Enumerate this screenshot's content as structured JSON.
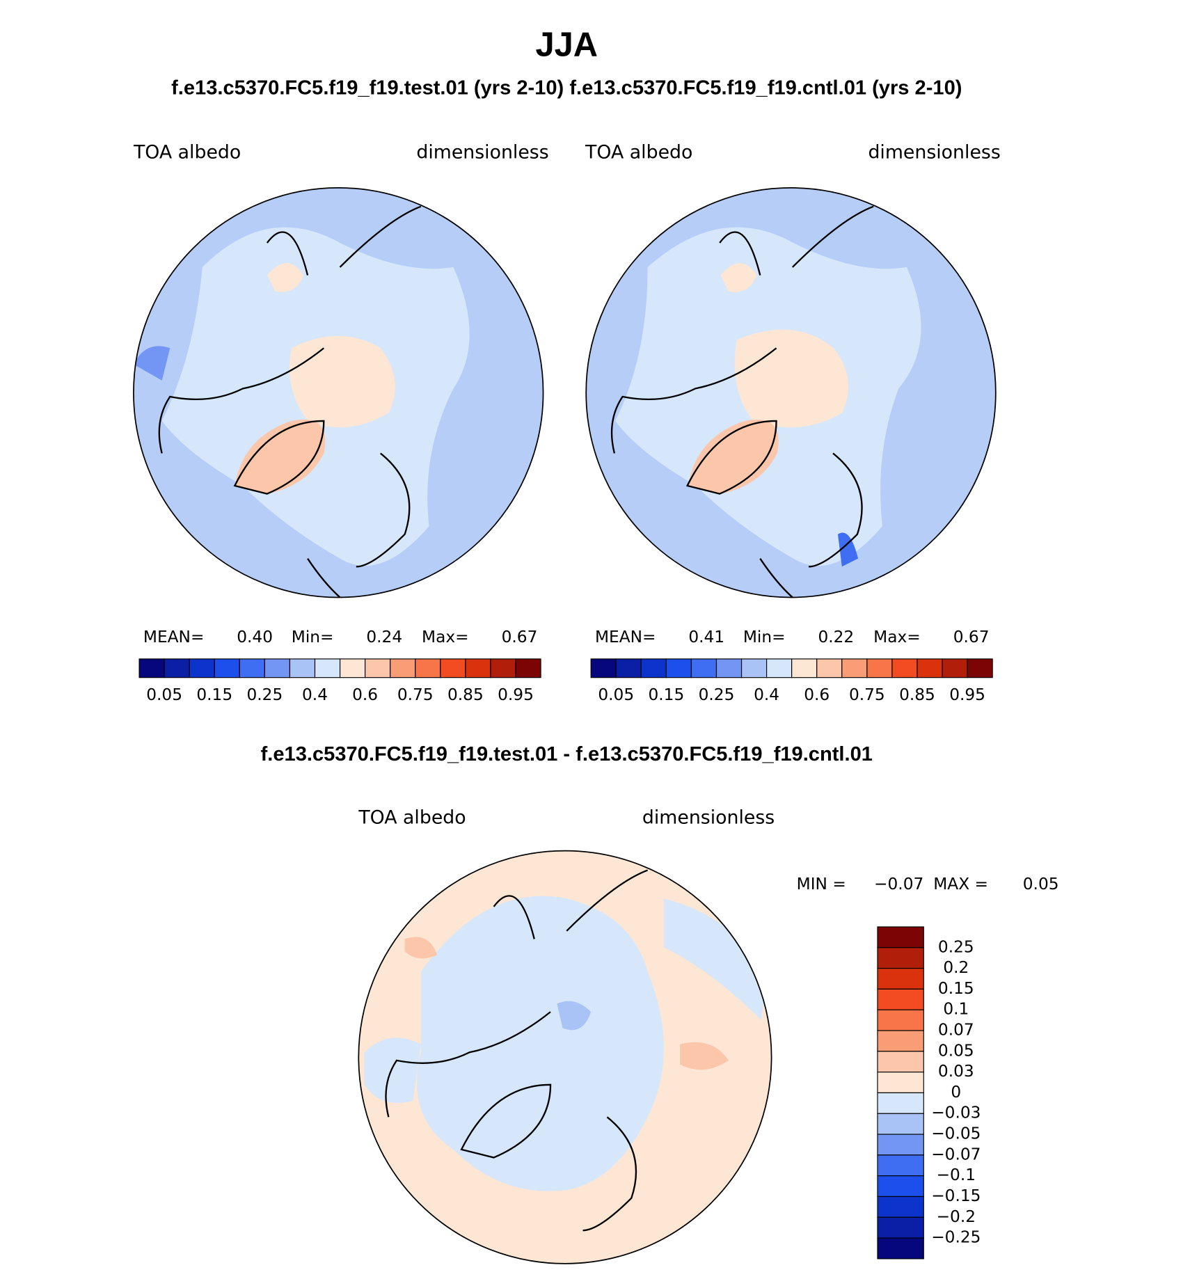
{
  "title": "JJA",
  "subtitle": "f.e13.c5370.FC5.f19_f19.test.01 (yrs 2-10) f.e13.c5370.FC5.f19_f19.cntl.01 (yrs 2-10)",
  "panels": [
    {
      "left_label": "TOA albedo",
      "right_label": "dimensionless",
      "stats": [
        "MEAN=",
        "0.40",
        "Min=",
        "0.24",
        "Max=",
        "0.67"
      ]
    },
    {
      "left_label": "TOA albedo",
      "right_label": "dimensionless",
      "stats": [
        "MEAN=",
        "0.41",
        "Min=",
        "0.22",
        "Max=",
        "0.67"
      ]
    }
  ],
  "colorbar": {
    "colors": [
      "#06067d",
      "#0a1fa6",
      "#0c33cc",
      "#1d4fed",
      "#3f6ef2",
      "#7396f5",
      "#a9c3f7",
      "#d6e7fb",
      "#fde6d4",
      "#fcc6aa",
      "#f99d77",
      "#f77548",
      "#f34b22",
      "#d9320c",
      "#b11e0a",
      "#7d0404"
    ],
    "labels": [
      "0.05",
      "0.15",
      "0.25",
      "0.4",
      "0.6",
      "0.75",
      "0.85",
      "0.95"
    ]
  },
  "difference": {
    "title": "f.e13.c5370.FC5.f19_f19.test.01 - f.e13.c5370.FC5.f19_f19.cntl.01",
    "left_label": "TOA albedo",
    "right_label": "dimensionless",
    "stats": [
      "MIN =",
      "−0.07",
      "MAX =",
      "0.05"
    ],
    "colorbar": {
      "colors": [
        "#7d0404",
        "#b11e0a",
        "#d9320c",
        "#f34b22",
        "#f77548",
        "#f99d77",
        "#fcc6aa",
        "#fde6d4",
        "#d6e7fb",
        "#a9c3f7",
        "#7396f5",
        "#3f6ef2",
        "#1d4fed",
        "#0c33cc",
        "#0a1fa6",
        "#06067d"
      ],
      "labels": [
        "0.25",
        "0.2",
        "0.15",
        "0.1",
        "0.07",
        "0.05",
        "0.03",
        "0",
        "−0.03",
        "−0.05",
        "−0.07",
        "−0.1",
        "−0.15",
        "−0.2",
        "−0.25"
      ]
    }
  }
}
